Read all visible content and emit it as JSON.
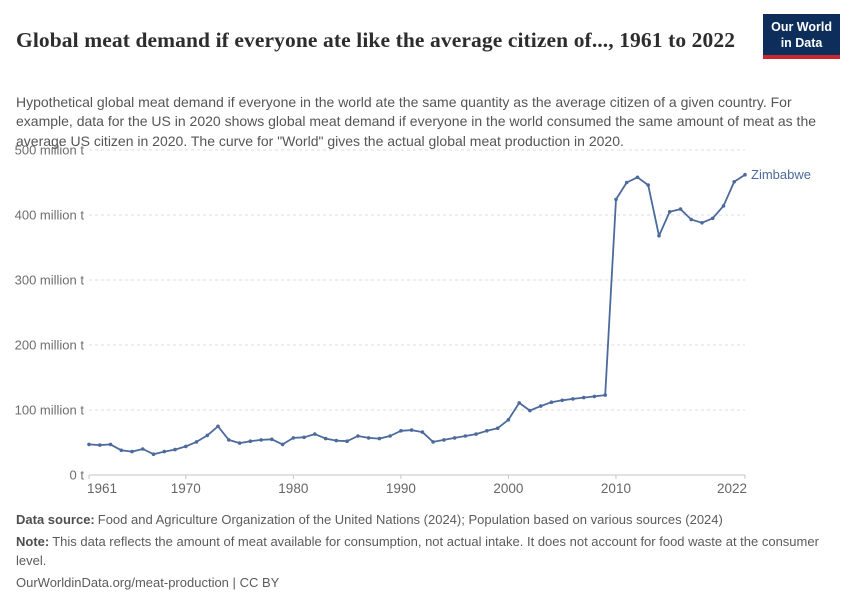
{
  "header": {
    "title": "Global meat demand if everyone ate like the average citizen of..., 1961 to 2022",
    "subtitle": "Hypothetical global meat demand if everyone in the world ate the same quantity as the average citizen of a given country. For example, data for the US in 2020 shows global meat demand if everyone in the world consumed the same amount of meat as the average US citizen in 2020. The curve for \"World\" gives the actual global meat production in 2020.",
    "logo": {
      "line1": "Our World",
      "line2": "in Data"
    }
  },
  "chart_data": {
    "type": "line",
    "title": "Global meat demand if everyone ate like the average citizen of..., 1961 to 2022",
    "unit": "million t",
    "xlim": [
      1961,
      2022
    ],
    "ylim": [
      0,
      500
    ],
    "grid": "horizontal-dashed",
    "legend_position": "end-of-line-label",
    "y_ticks": [
      {
        "value": 0,
        "label": "0 t"
      },
      {
        "value": 100,
        "label": "100 million t"
      },
      {
        "value": 200,
        "label": "200 million t"
      },
      {
        "value": 300,
        "label": "300 million t"
      },
      {
        "value": 400,
        "label": "400 million t"
      },
      {
        "value": 500,
        "label": "500 million t"
      }
    ],
    "x_ticks": [
      1961,
      1970,
      1980,
      1990,
      2000,
      2010,
      2022
    ],
    "series": [
      {
        "name": "Zimbabwe",
        "color": "#4c6a9c",
        "years": [
          1961,
          1962,
          1963,
          1964,
          1965,
          1966,
          1967,
          1968,
          1969,
          1970,
          1971,
          1972,
          1973,
          1974,
          1975,
          1976,
          1977,
          1978,
          1979,
          1980,
          1981,
          1982,
          1983,
          1984,
          1985,
          1986,
          1987,
          1988,
          1989,
          1990,
          1991,
          1992,
          1993,
          1994,
          1995,
          1996,
          1997,
          1998,
          1999,
          2000,
          2001,
          2002,
          2003,
          2004,
          2005,
          2006,
          2007,
          2008,
          2009,
          2010,
          2011,
          2012,
          2013,
          2014,
          2015,
          2016,
          2017,
          2018,
          2019,
          2020,
          2021,
          2022
        ],
        "values": [
          47,
          46,
          47,
          38,
          36,
          40,
          32,
          36,
          39,
          44,
          51,
          61,
          75,
          54,
          49,
          52,
          54,
          55,
          47,
          57,
          58,
          63,
          56,
          53,
          52,
          60,
          57,
          56,
          60,
          68,
          69,
          66,
          51,
          54,
          57,
          60,
          63,
          68,
          72,
          85,
          111,
          99,
          106,
          112,
          115,
          117,
          119,
          121,
          123,
          424,
          450,
          458,
          446,
          368,
          405,
          409,
          393,
          388,
          395,
          414,
          451,
          462
        ]
      }
    ]
  },
  "footer": {
    "data_source_label": "Data source:",
    "data_source_text": "Food and Agriculture Organization of the United Nations (2024); Population based on various sources (2024)",
    "note_label": "Note:",
    "note_text": "This data reflects the amount of meat available for consumption, not actual intake. It does not account for food waste at the consumer level.",
    "citation_url": "OurWorldinData.org/meat-production",
    "citation_divider": "|",
    "citation_license": "CC BY"
  }
}
